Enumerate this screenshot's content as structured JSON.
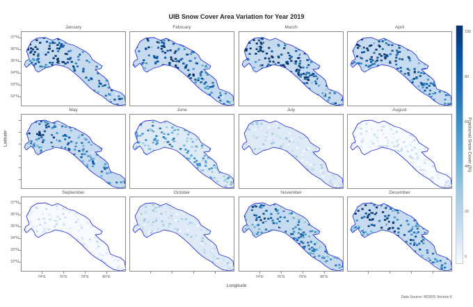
{
  "title": "UIB Snow Cover Area Variation for Year 2019",
  "panels": [
    {
      "month": "January",
      "snow": 0.75
    },
    {
      "month": "February",
      "snow": 0.72
    },
    {
      "month": "March",
      "snow": 0.8
    },
    {
      "month": "April",
      "snow": 0.72
    },
    {
      "month": "May",
      "snow": 0.62
    },
    {
      "month": "June",
      "snow": 0.48
    },
    {
      "month": "July",
      "snow": 0.18
    },
    {
      "month": "August",
      "snow": 0.1
    },
    {
      "month": "September",
      "snow": 0.1
    },
    {
      "month": "October",
      "snow": 0.2
    },
    {
      "month": "November",
      "snow": 0.6
    },
    {
      "month": "December",
      "snow": 0.7
    }
  ],
  "y_ticks": [
    "37°N",
    "36°N",
    "35°N",
    "34°N",
    "33°N",
    "32°N"
  ],
  "x_ticks": [
    "74°E",
    "76°E",
    "78°E",
    "80°E"
  ],
  "ylabel": "Latitude",
  "xlabel": "Longitude",
  "colorbar": {
    "title": "Fractional Snow Cover (%)",
    "ticks": [
      "100",
      "80",
      "60",
      "40",
      "20",
      "0"
    ],
    "range": [
      0,
      100
    ]
  },
  "source": "Data Source: MODIS Version 6",
  "colors": {
    "outline": "#2a35d8",
    "colormap": [
      "#f7fbff",
      "#deebf7",
      "#c6dbef",
      "#9ecae1",
      "#6baed6",
      "#4292c6",
      "#2171b5",
      "#08519c",
      "#08306b"
    ]
  }
}
